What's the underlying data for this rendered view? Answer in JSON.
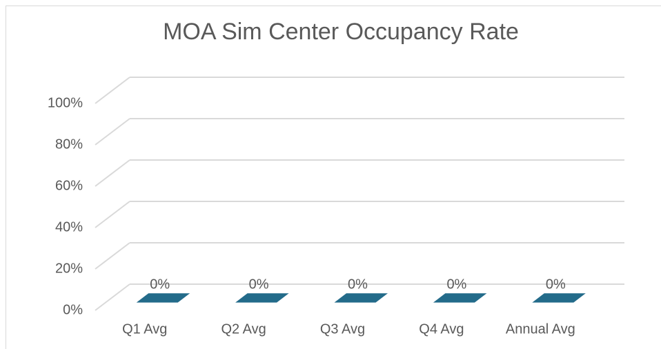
{
  "chart_data": {
    "type": "bar3d",
    "title": "MOA Sim Center Occupancy Rate",
    "categories": [
      "Q1 Avg",
      "Q2 Avg",
      "Q3 Avg",
      "Q4 Avg",
      "Annual Avg"
    ],
    "values": [
      0,
      0,
      0,
      0,
      0
    ],
    "value_labels": [
      "0%",
      "0%",
      "0%",
      "0%",
      "0%"
    ],
    "color": "#236b8a",
    "ylim": [
      0,
      100
    ],
    "yticks": [
      {
        "value": 0,
        "label": "0%"
      },
      {
        "value": 20,
        "label": "20%"
      },
      {
        "value": 40,
        "label": "40%"
      },
      {
        "value": 60,
        "label": "60%"
      },
      {
        "value": 80,
        "label": "80%"
      },
      {
        "value": 100,
        "label": "100%"
      }
    ],
    "grid": true
  }
}
